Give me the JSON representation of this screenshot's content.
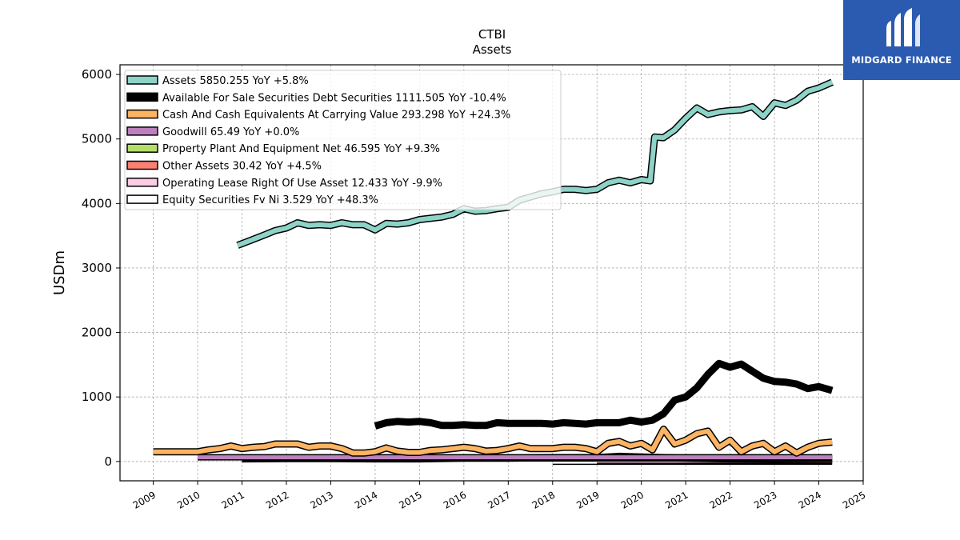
{
  "header": {
    "company": "CTBI",
    "subtitle": "Assets"
  },
  "logo": {
    "brand": "MIDGARD FINANCE",
    "accent": "#2a5bb0",
    "icon": "midgard-logo-icon"
  },
  "chart_data": {
    "type": "line",
    "title": "CTBI",
    "subtitle": "Assets",
    "xlabel": "",
    "ylabel": "USDm",
    "xlim": [
      2008.25,
      2025.0
    ],
    "ylim": [
      -300,
      6150
    ],
    "xticks": [
      "2009",
      "2010",
      "2011",
      "2012",
      "2013",
      "2014",
      "2015",
      "2016",
      "2017",
      "2018",
      "2019",
      "2020",
      "2021",
      "2022",
      "2023",
      "2024",
      "2025"
    ],
    "yticks": [
      "0",
      "1000",
      "2000",
      "3000",
      "4000",
      "5000",
      "6000"
    ],
    "grid": true,
    "legend_position": "top-left",
    "series": [
      {
        "name": "Assets",
        "legend": "Assets  5850.255 YoY +5.8%",
        "color": "#8dd3c7",
        "width": 6,
        "outline": true,
        "x": [
          2010.9,
          2011.2,
          2011.5,
          2011.75,
          2012.0,
          2012.25,
          2012.5,
          2012.75,
          2013.0,
          2013.25,
          2013.5,
          2013.75,
          2014.0,
          2014.25,
          2014.5,
          2014.75,
          2015.0,
          2015.25,
          2015.5,
          2015.75,
          2016.0,
          2016.25,
          2016.5,
          2016.75,
          2017.0,
          2017.25,
          2017.5,
          2017.75,
          2018.0,
          2018.25,
          2018.5,
          2018.75,
          2019.0,
          2019.25,
          2019.5,
          2019.75,
          2020.0,
          2020.2,
          2020.3,
          2020.5,
          2020.75,
          2021.0,
          2021.25,
          2021.5,
          2021.75,
          2022.0,
          2022.25,
          2022.5,
          2022.75,
          2023.0,
          2023.25,
          2023.5,
          2023.75,
          2024.0,
          2024.3
        ],
        "y": [
          3350,
          3430,
          3510,
          3580,
          3620,
          3700,
          3660,
          3670,
          3660,
          3700,
          3670,
          3670,
          3590,
          3690,
          3680,
          3700,
          3750,
          3770,
          3790,
          3830,
          3920,
          3880,
          3890,
          3920,
          3940,
          4050,
          4100,
          4150,
          4180,
          4220,
          4220,
          4200,
          4220,
          4320,
          4360,
          4320,
          4370,
          4350,
          5030,
          5020,
          5140,
          5320,
          5480,
          5380,
          5420,
          5440,
          5450,
          5500,
          5350,
          5560,
          5520,
          5600,
          5740,
          5790,
          5880
        ]
      },
      {
        "name": "Available For Sale Securities Debt Securities",
        "legend": "Available For Sale Securities Debt Securities  1111.505 YoY -10.4%",
        "color": "#000000",
        "width": 9,
        "outline": false,
        "x": [
          2014.0,
          2014.25,
          2014.5,
          2014.75,
          2015.0,
          2015.25,
          2015.5,
          2015.75,
          2016.0,
          2016.25,
          2016.5,
          2016.75,
          2017.0,
          2017.25,
          2017.5,
          2017.75,
          2018.0,
          2018.25,
          2018.5,
          2018.75,
          2019.0,
          2019.25,
          2019.5,
          2019.75,
          2020.0,
          2020.25,
          2020.5,
          2020.75,
          2021.0,
          2021.25,
          2021.5,
          2021.75,
          2022.0,
          2022.25,
          2022.5,
          2022.75,
          2023.0,
          2023.25,
          2023.5,
          2023.75,
          2024.0,
          2024.3
        ],
        "y": [
          550,
          600,
          620,
          610,
          620,
          600,
          560,
          560,
          570,
          560,
          560,
          600,
          590,
          590,
          590,
          590,
          580,
          600,
          590,
          580,
          600,
          600,
          600,
          640,
          610,
          640,
          740,
          950,
          1000,
          1140,
          1350,
          1520,
          1460,
          1510,
          1400,
          1290,
          1240,
          1230,
          1200,
          1130,
          1160,
          1100
        ]
      },
      {
        "name": "Cash And Cash Equivalents At Carrying Value",
        "legend": "Cash And Cash Equivalents At Carrying Value  293.298 YoY +24.3%",
        "color": "#fdb462",
        "width": 6,
        "outline": true,
        "x": [
          2009.0,
          2009.5,
          2010.0,
          2010.25,
          2010.5,
          2010.75,
          2011.0,
          2011.25,
          2011.5,
          2011.75,
          2012.0,
          2012.25,
          2012.5,
          2012.75,
          2013.0,
          2013.25,
          2013.5,
          2013.75,
          2014.0,
          2014.25,
          2014.5,
          2014.75,
          2015.0,
          2015.25,
          2015.5,
          2015.75,
          2016.0,
          2016.25,
          2016.5,
          2016.75,
          2017.0,
          2017.25,
          2017.5,
          2017.75,
          2018.0,
          2018.25,
          2018.5,
          2018.75,
          2019.0,
          2019.25,
          2019.5,
          2019.75,
          2020.0,
          2020.25,
          2020.5,
          2020.75,
          2021.0,
          2021.25,
          2021.5,
          2021.75,
          2022.0,
          2022.25,
          2022.5,
          2022.75,
          2023.0,
          2023.25,
          2023.5,
          2023.75,
          2024.0,
          2024.3
        ],
        "y": [
          150,
          150,
          150,
          180,
          200,
          240,
          200,
          220,
          230,
          270,
          270,
          270,
          220,
          240,
          240,
          200,
          130,
          130,
          150,
          210,
          160,
          140,
          140,
          170,
          180,
          200,
          220,
          200,
          160,
          170,
          200,
          240,
          200,
          200,
          200,
          220,
          220,
          200,
          150,
          280,
          310,
          240,
          280,
          180,
          500,
          270,
          330,
          430,
          470,
          220,
          330,
          150,
          240,
          280,
          150,
          240,
          130,
          220,
          280,
          300
        ]
      },
      {
        "name": "Goodwill",
        "legend": "Goodwill  65.49 YoY +0.0%",
        "color": "#bc80bd",
        "width": 5,
        "outline": true,
        "x": [
          2010.0,
          2024.3
        ],
        "y": [
          65,
          65
        ]
      },
      {
        "name": "Property Plant And Equipment Net",
        "legend": "Property Plant And Equipment Net  46.595 YoY +9.3%",
        "color": "#b3de69",
        "width": 5,
        "outline": true,
        "x": [
          2011.0,
          2024.3
        ],
        "y": [
          48,
          47
        ]
      },
      {
        "name": "Other Assets",
        "legend": "Other Assets  30.42 YoY +4.5%",
        "color": "#fb8072",
        "width": 6,
        "outline": true,
        "x": [
          2011.0,
          2012.0,
          2013.0,
          2014.0,
          2015.0,
          2016.0,
          2017.0,
          2018.0,
          2019.0,
          2019.5,
          2020.0,
          2020.5,
          2021.0,
          2022.0,
          2023.0,
          2024.3
        ],
        "y": [
          40,
          45,
          45,
          40,
          40,
          50,
          50,
          60,
          60,
          80,
          70,
          60,
          50,
          40,
          35,
          30
        ]
      },
      {
        "name": "Operating Lease Right Of Use Asset",
        "legend": "Operating Lease Right Of Use Asset  12.433 YoY -9.9%",
        "color": "#fccde5",
        "width": 5,
        "outline": true,
        "x": [
          2019.0,
          2024.3
        ],
        "y": [
          14,
          12
        ]
      },
      {
        "name": "Equity Securities Fv Ni",
        "legend": "Equity Securities Fv Ni  3.529 YoY +48.3%",
        "color": "#ffffff",
        "width": 6,
        "outline": true,
        "x": [
          2018.0,
          2024.3
        ],
        "y": [
          3,
          3.5
        ]
      }
    ]
  }
}
